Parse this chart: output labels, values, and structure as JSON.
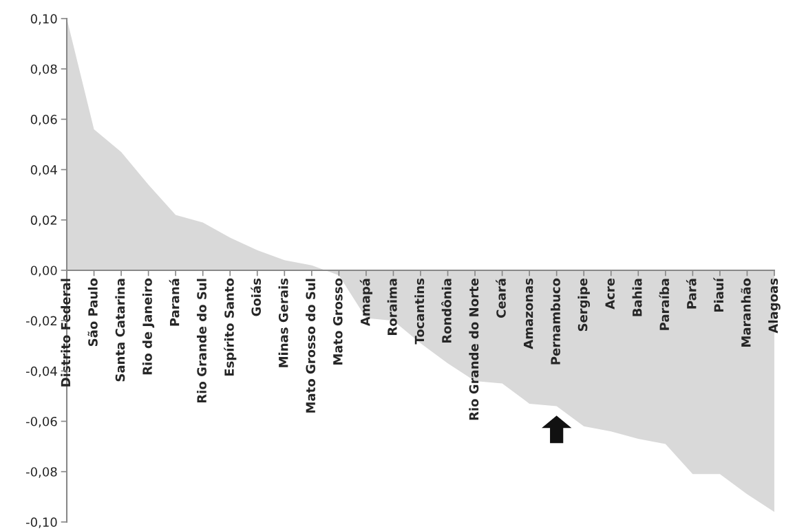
{
  "chart_data": {
    "type": "area",
    "categories": [
      "Distrito Federal",
      "São Paulo",
      "Santa Catarina",
      "Rio de Janeiro",
      "Paraná",
      "Rio Grande do Sul",
      "Espírito Santo",
      "Goiás",
      "Minas Gerais",
      "Mato Grosso do Sul",
      "Mato Grosso",
      "Amapá",
      "Roraima",
      "Tocantins",
      "Rondônia",
      "Rio Grande do Norte",
      "Ceará",
      "Amazonas",
      "Pernambuco",
      "Sergipe",
      "Acre",
      "Bahia",
      "Paraíba",
      "Pará",
      "Piauí",
      "Maranhão",
      "Alagoas"
    ],
    "values": [
      0.1,
      0.056,
      0.047,
      0.034,
      0.022,
      0.019,
      0.013,
      0.008,
      0.004,
      0.002,
      -0.002,
      -0.019,
      -0.02,
      -0.029,
      -0.037,
      -0.044,
      -0.045,
      -0.053,
      -0.054,
      -0.062,
      -0.064,
      -0.067,
      -0.069,
      -0.081,
      -0.081,
      -0.089,
      -0.096
    ],
    "color": "#d9d9d9",
    "ylim": [
      -0.1,
      0.1
    ],
    "yticks": [
      {
        "value": -0.1,
        "label": "-0,10"
      },
      {
        "value": -0.08,
        "label": "-0,08"
      },
      {
        "value": -0.06,
        "label": "-0,06"
      },
      {
        "value": -0.04,
        "label": "-0,04"
      },
      {
        "value": -0.02,
        "label": "-0,02"
      },
      {
        "value": 0.0,
        "label": "0,00"
      },
      {
        "value": 0.02,
        "label": "0,02"
      },
      {
        "value": 0.04,
        "label": "0,04"
      },
      {
        "value": 0.06,
        "label": "0,06"
      },
      {
        "value": 0.08,
        "label": "0,08"
      },
      {
        "value": 0.1,
        "label": "0,10"
      }
    ],
    "grid": false
  }
}
